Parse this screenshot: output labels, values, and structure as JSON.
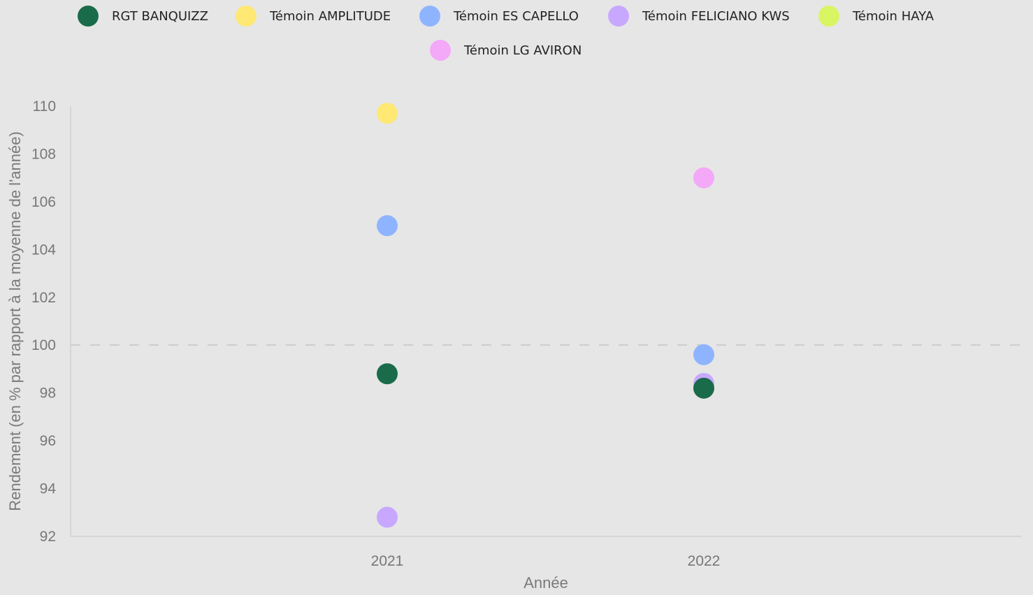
{
  "chart_data": {
    "type": "scatter",
    "xlabel": "Année",
    "ylabel": "Rendement (en % par rapport à la moyenne de l'année)",
    "categories": [
      "2021",
      "2022"
    ],
    "ylim": [
      92,
      110
    ],
    "yticks": [
      "92",
      "94",
      "96",
      "98",
      "100",
      "102",
      "104",
      "106",
      "108",
      "110"
    ],
    "reference_line": {
      "y": 100,
      "style": "dashed"
    },
    "grid": false,
    "legend_position": "top",
    "series": [
      {
        "name": "RGT BANQUIZZ",
        "color": "#1a6b4a",
        "values": [
          98.8,
          98.2
        ]
      },
      {
        "name": "Témoin AMPLITUDE",
        "color": "#ffe873",
        "values": [
          109.7,
          null
        ]
      },
      {
        "name": "Témoin ES CAPELLO",
        "color": "#8fb4ff",
        "values": [
          105.0,
          99.6
        ]
      },
      {
        "name": "Témoin FELICIANO KWS",
        "color": "#c8a8ff",
        "values": [
          92.8,
          98.4
        ]
      },
      {
        "name": "Témoin HAYA",
        "color": "#d8f563",
        "values": [
          null,
          null
        ]
      },
      {
        "name": "Témoin LG AVIRON",
        "color": "#f4a8f8",
        "values": [
          null,
          107.0
        ]
      }
    ]
  }
}
